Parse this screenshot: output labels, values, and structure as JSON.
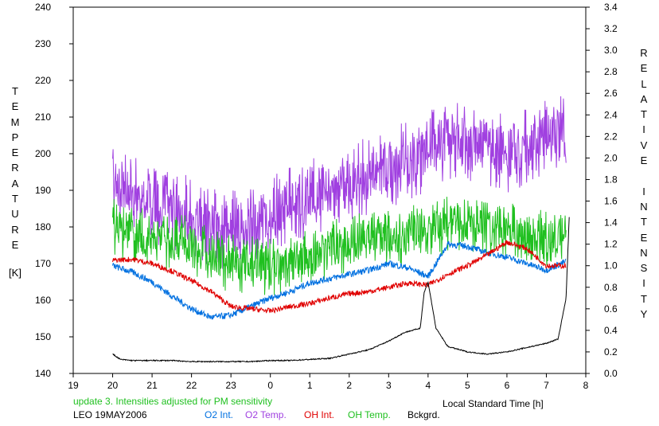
{
  "chart_data": {
    "type": "line",
    "ylabel_left_letters": [
      "T",
      "E",
      "M",
      "P",
      "E",
      "R",
      "A",
      "T",
      "U",
      "R",
      "E"
    ],
    "ylabel_left_unit": "[K]",
    "ylabel_right_letters": [
      "R",
      "E",
      "L",
      "A",
      "T",
      "I",
      "V",
      "E",
      "",
      "I",
      "N",
      "T",
      "E",
      "N",
      "S",
      "I",
      "T",
      "Y"
    ],
    "xlabel": "Local Standard Time [h]",
    "update_note": "update 3. Intensities adjusted for PM sensitivity",
    "station_date": "LEO 19MAY2006",
    "x_ticks": [
      "19",
      "20",
      "21",
      "22",
      "23",
      "0",
      "1",
      "2",
      "3",
      "4",
      "5",
      "6",
      "7",
      "8"
    ],
    "y_left_ticks": [
      140,
      150,
      160,
      170,
      180,
      190,
      200,
      210,
      220,
      230,
      240
    ],
    "y_right_ticks": [
      "0.0",
      "0.2",
      "0.4",
      "0.6",
      "0.8",
      "1.0",
      "1.2",
      "1.4",
      "1.6",
      "1.8",
      "2.0",
      "2.2",
      "2.4",
      "2.6",
      "2.8",
      "3.0",
      "3.2",
      "3.4"
    ],
    "xlim": [
      19,
      32
    ],
    "ylim_left": [
      140,
      240
    ],
    "ylim_right": [
      0.0,
      3.4
    ],
    "grid": false,
    "colors": {
      "o2_int": "#0070e0",
      "o2_temp": "#a040e0",
      "oh_int": "#e00000",
      "oh_temp": "#20c020",
      "bckgrd": "#000000",
      "note": "#20c020"
    },
    "series": [
      {
        "name": "O2 Temp.",
        "axis": "left",
        "key": "o2_temp",
        "x": [
          20.0,
          20.5,
          21.0,
          21.5,
          22.0,
          22.5,
          23.0,
          23.5,
          24.0,
          24.5,
          25.0,
          25.5,
          26.0,
          26.5,
          27.0,
          27.5,
          28.0,
          28.5,
          29.0,
          29.5,
          30.0,
          30.5,
          31.0,
          31.5
        ],
        "y": [
          192,
          190,
          187,
          184,
          183,
          180,
          179,
          181,
          184,
          186,
          188,
          190,
          192,
          194,
          196,
          198,
          201,
          204,
          203,
          202,
          200,
          202,
          205,
          205
        ],
        "amplitude": 11
      },
      {
        "name": "OH Temp.",
        "axis": "left",
        "key": "oh_temp",
        "x": [
          20.0,
          20.5,
          21.0,
          21.5,
          22.0,
          22.5,
          23.0,
          23.5,
          24.0,
          24.5,
          25.0,
          25.5,
          26.0,
          26.5,
          27.0,
          27.5,
          28.0,
          28.5,
          29.0,
          29.5,
          30.0,
          30.5,
          31.0,
          31.5
        ],
        "y": [
          180,
          178,
          177,
          176,
          175,
          172,
          170,
          170,
          169,
          170,
          172,
          174,
          175,
          177,
          177,
          178,
          179,
          181,
          181,
          180,
          179,
          178,
          177,
          178
        ],
        "amplitude": 8
      },
      {
        "name": "O2 Int.",
        "axis": "right",
        "key": "o2_int",
        "x": [
          20.0,
          20.5,
          21.0,
          21.5,
          22.0,
          22.5,
          23.0,
          23.5,
          24.0,
          24.5,
          25.0,
          25.5,
          26.0,
          26.5,
          27.0,
          27.5,
          28.0,
          28.5,
          29.0,
          29.5,
          30.0,
          30.5,
          31.0,
          31.5
        ],
        "y": [
          1.0,
          0.94,
          0.85,
          0.72,
          0.6,
          0.52,
          0.54,
          0.62,
          0.7,
          0.76,
          0.84,
          0.88,
          0.92,
          0.96,
          1.02,
          0.98,
          0.9,
          1.2,
          1.18,
          1.12,
          1.08,
          1.02,
          0.96,
          1.04
        ],
        "amplitude": 0.03
      },
      {
        "name": "OH Int.",
        "axis": "right",
        "key": "oh_int",
        "x": [
          20.0,
          20.5,
          21.0,
          21.5,
          22.0,
          22.5,
          23.0,
          23.5,
          24.0,
          24.5,
          25.0,
          25.5,
          26.0,
          26.5,
          27.0,
          27.5,
          28.0,
          28.5,
          29.0,
          29.5,
          30.0,
          30.5,
          31.0,
          31.5
        ],
        "y": [
          1.05,
          1.06,
          1.02,
          0.95,
          0.86,
          0.76,
          0.62,
          0.6,
          0.58,
          0.62,
          0.65,
          0.7,
          0.74,
          0.76,
          0.8,
          0.84,
          0.82,
          0.92,
          1.0,
          1.1,
          1.22,
          1.16,
          1.0,
          1.0
        ],
        "amplitude": 0.025
      },
      {
        "name": "Bckgrd.",
        "axis": "right",
        "key": "bckgrd",
        "x": [
          20.0,
          20.2,
          20.5,
          21.0,
          21.5,
          22.0,
          22.5,
          23.0,
          23.5,
          24.0,
          24.5,
          25.0,
          25.5,
          26.0,
          26.5,
          27.0,
          27.4,
          27.8,
          27.9,
          28.0,
          28.2,
          28.5,
          29.0,
          29.5,
          30.0,
          30.5,
          31.0,
          31.3,
          31.5,
          31.58
        ],
        "y": [
          0.18,
          0.13,
          0.12,
          0.12,
          0.12,
          0.11,
          0.11,
          0.11,
          0.11,
          0.12,
          0.12,
          0.13,
          0.14,
          0.18,
          0.22,
          0.3,
          0.38,
          0.42,
          0.75,
          0.85,
          0.42,
          0.25,
          0.2,
          0.18,
          0.2,
          0.24,
          0.28,
          0.32,
          0.7,
          1.45
        ],
        "amplitude": 0.005
      }
    ],
    "legend": [
      "O2 Int.",
      "O2 Temp.",
      "OH Int.",
      "OH Temp.",
      "Bckgrd."
    ]
  }
}
